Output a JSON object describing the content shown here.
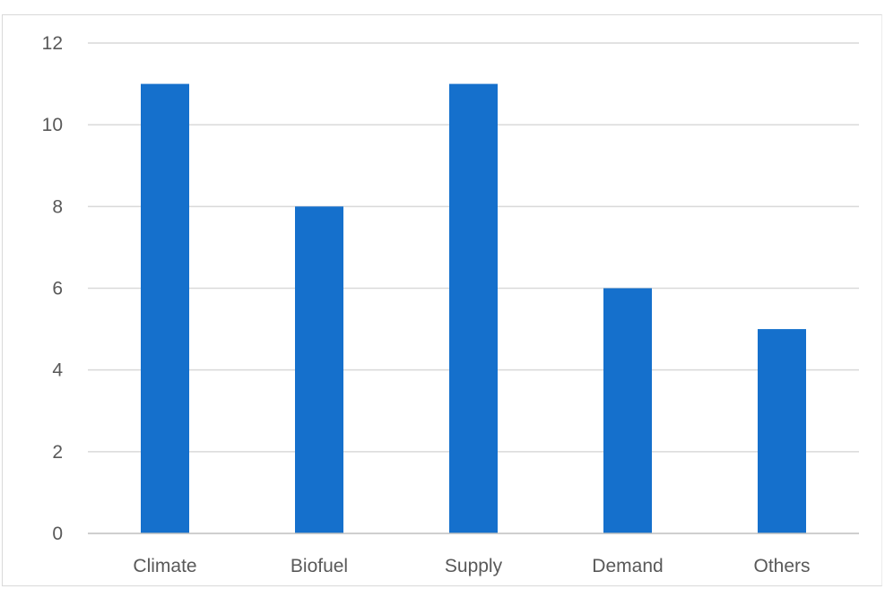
{
  "chart_data": {
    "type": "bar",
    "categories": [
      "Climate",
      "Biofuel",
      "Supply",
      "Demand",
      "Others"
    ],
    "values": [
      11,
      8,
      11,
      6,
      5
    ],
    "title": "",
    "xlabel": "",
    "ylabel": "",
    "ylim": [
      0,
      12
    ],
    "yticks": [
      0,
      2,
      4,
      6,
      8,
      10,
      12
    ],
    "grid": true,
    "legend": "none",
    "colors": {
      "bar": "#1570CC",
      "gridline": "#d9d9d9",
      "axis": "#bfbfbf",
      "label": "#595959"
    }
  }
}
